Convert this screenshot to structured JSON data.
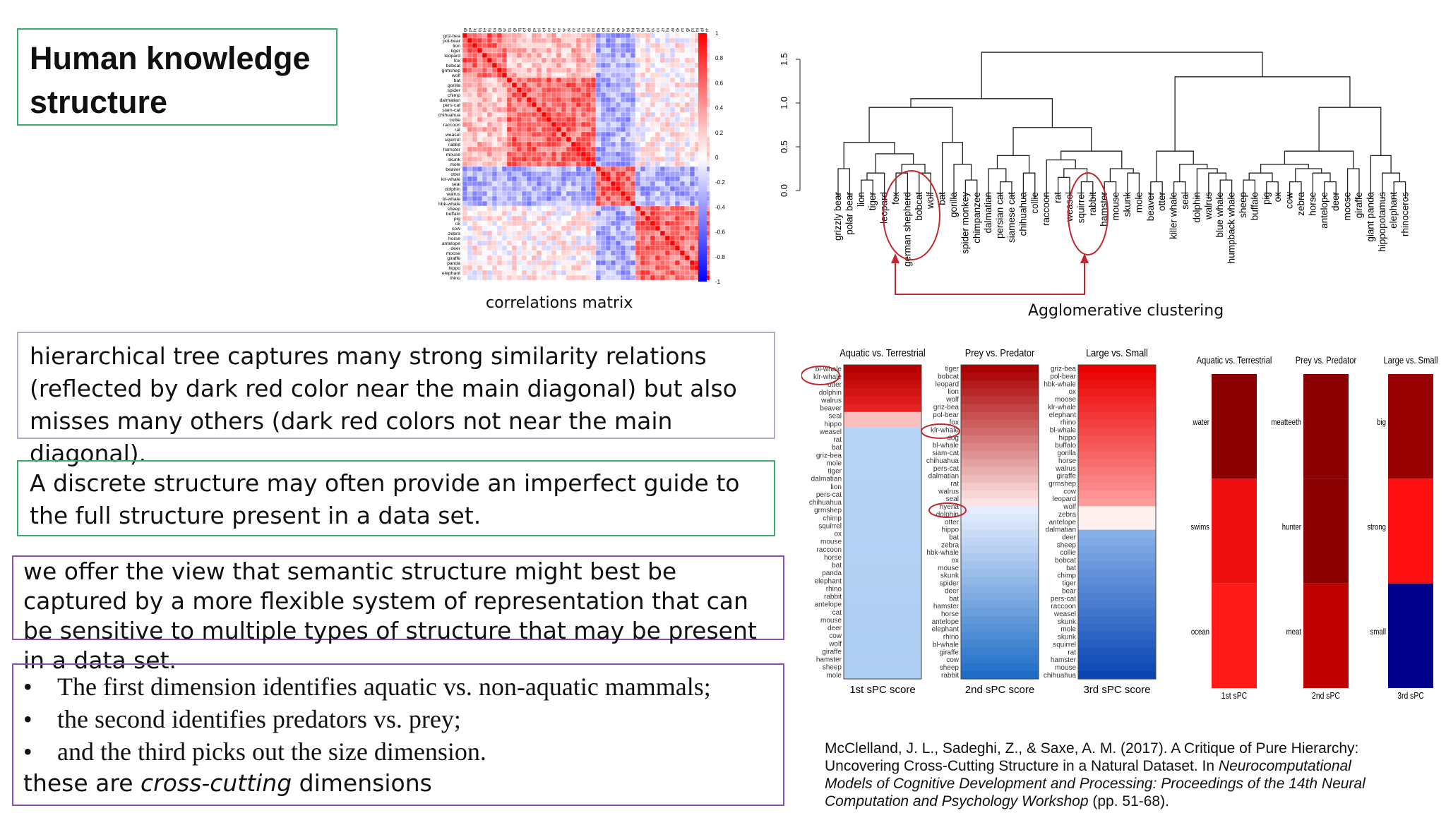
{
  "title": "Human knowledge structure",
  "matrix_caption": "correlations matrix",
  "matrix_labels": [
    "griz-bea",
    "pol-bear",
    "lion",
    "tiger",
    "leopard",
    "fox",
    "bobcat",
    "grmshep",
    "wolf",
    "bat",
    "gorilla",
    "spider",
    "chimp",
    "dalmatian",
    "pers-cat",
    "siam-cat",
    "chihuahua",
    "collie",
    "raccoon",
    "rat",
    "weasel",
    "squirrel",
    "rabbit",
    "hamster",
    "mouse",
    "skunk",
    "mole",
    "beaver",
    "otter",
    "klr-whale",
    "seal",
    "dolphin",
    "walrus",
    "bl-whale",
    "hbk-whale",
    "sheep",
    "buffalo",
    "pig",
    "ox",
    "cow",
    "zebra",
    "horse",
    "antelope",
    "deer",
    "moose",
    "giraffe",
    "panda",
    "hippo",
    "elephant",
    "rhino"
  ],
  "colorbar_ticks": [
    "1",
    "0.8",
    "0.6",
    "0.4",
    "0.2",
    "0",
    "-0.2",
    "-0.4",
    "-0.6",
    "-0.8",
    "-1"
  ],
  "dendrogram": {
    "y_ticks": [
      "0.0",
      "0.5",
      "1.0",
      "1.5"
    ],
    "leaves": [
      "grizzly bear",
      "polar bear",
      "lion",
      "tiger",
      "leopard",
      "fox",
      "german shepherd",
      "bobcat",
      "wolf",
      "bat",
      "gorilla",
      "spider monkey",
      "chimpanzee",
      "dalmatian",
      "persian cat",
      "siamese cat",
      "chihuahua",
      "collie",
      "raccoon",
      "rat",
      "weasel",
      "squirrel",
      "rabbit",
      "hamster",
      "mouse",
      "skunk",
      "mole",
      "beaver",
      "otter",
      "killer whale",
      "seal",
      "dolphin",
      "walrus",
      "blue whale",
      "humpback whale",
      "sheep",
      "buffalo",
      "pig",
      "ox",
      "cow",
      "zebra",
      "horse",
      "antelope",
      "deer",
      "moose",
      "giraffe",
      "giant panda",
      "hippopotamus",
      "elephant",
      "rhinoceros"
    ],
    "caption": "Agglomerative clustering"
  },
  "box1_text": "hierarchical tree captures many strong similarity relations (reflected by dark red color near the main diagonal) but also misses many others (dark red colors not near the main diagonal).",
  "box2_text": "A discrete structure may often provide an imperfect guide to the full structure present in a data set.",
  "box3_text": "we offer the view that semantic structure might best be captured by a more flexible system of representation that can be sensitive to multiple types of structure that may be present in a data set.",
  "bullets": [
    "The first dimension identifies aquatic vs. non-aquatic mammals;",
    "the second identifies predators vs. prey;",
    "and the third picks out the size dimension."
  ],
  "bullet_symbol": "•",
  "cross_prefix": "these are ",
  "cross_em": "cross-cutting",
  "cross_suffix": " dimensions",
  "spc": {
    "headers": [
      "Aquatic vs. Terrestrial",
      "Prey vs. Predator",
      "Large vs. Small"
    ],
    "footers": [
      "1st sPC score",
      "2nd sPC score",
      "3rd sPC score"
    ],
    "col1_labels": [
      "bl-whale",
      "klr-whale",
      "otter",
      "dolphin",
      "walrus",
      "beaver",
      "seal",
      "hippo",
      "weasel",
      "rat",
      "bat",
      "griz-bea",
      "mole",
      "tiger",
      "dalmatian",
      "lion",
      "pers-cat",
      "chihuahua",
      "grmshep",
      "chimp",
      "squirrel",
      "ox",
      "mouse",
      "raccoon",
      "horse",
      "bat",
      "panda",
      "elephant",
      "rhino",
      "rabbit",
      "antelope",
      "cat",
      "mouse",
      "deer",
      "cow",
      "wolf",
      "giraffe",
      "hamster",
      "sheep",
      "mole"
    ],
    "col2_labels": [
      "tiger",
      "bobcat",
      "leopard",
      "lion",
      "wolf",
      "griz-bea",
      "pol-bear",
      "fox",
      "klr-whale",
      "dog",
      "bl-whale",
      "siam-cat",
      "chihuahua",
      "pers-cat",
      "dalmatian",
      "rat",
      "walrus",
      "seal",
      "hyena",
      "dolphin",
      "otter",
      "hippo",
      "bat",
      "zebra",
      "hbk-whale",
      "ox",
      "mouse",
      "skunk",
      "spider",
      "deer",
      "bat",
      "hamster",
      "horse",
      "antelope",
      "elephant",
      "rhino",
      "bl-whale",
      "giraffe",
      "cow",
      "sheep",
      "rabbit"
    ],
    "col3_labels": [
      "griz-bea",
      "pol-bear",
      "hbk-whale",
      "ox",
      "moose",
      "klr-whale",
      "elephant",
      "rhino",
      "bl-whale",
      "hippo",
      "buffalo",
      "gorilla",
      "horse",
      "walrus",
      "giraffe",
      "grmshep",
      "cow",
      "leopard",
      "wolf",
      "zebra",
      "antelope",
      "dalmatian",
      "deer",
      "sheep",
      "collie",
      "bobcat",
      "bat",
      "chimp",
      "tiger",
      "bear",
      "pers-cat",
      "raccoon",
      "weasel",
      "skunk",
      "mole",
      "skunk",
      "squirrel",
      "rat",
      "hamster",
      "mouse",
      "chihuahua"
    ]
  },
  "spc2": {
    "headers": [
      "Aquatic vs. Terrestrial",
      "Prey vs. Predator",
      "Large vs. Small"
    ],
    "col1_labels": [
      "water",
      "swims",
      "ocean"
    ],
    "col2_labels": [
      "meatteeth",
      "hunter",
      "meat"
    ],
    "col3_labels": [
      "big",
      "strong",
      "small"
    ],
    "footers": [
      "1st sPC",
      "2nd sPC",
      "3rd sPC"
    ]
  },
  "reference": {
    "line1": "McClelland, J. L., Sadeghi, Z., & Saxe, A. M. (2017). A Critique of Pure Hierarchy:",
    "line2_plain": "Uncovering Cross-Cutting Structure in a Natural Dataset. In ",
    "line2_italic": "Neurocomputational",
    "line3_italic": "Models of Cognitive Development and Processing: Proceedings of the 14th Neural",
    "line4_italic": "Computation and Psychology Workshop",
    "line4_plain": " (pp. 51-68)."
  }
}
